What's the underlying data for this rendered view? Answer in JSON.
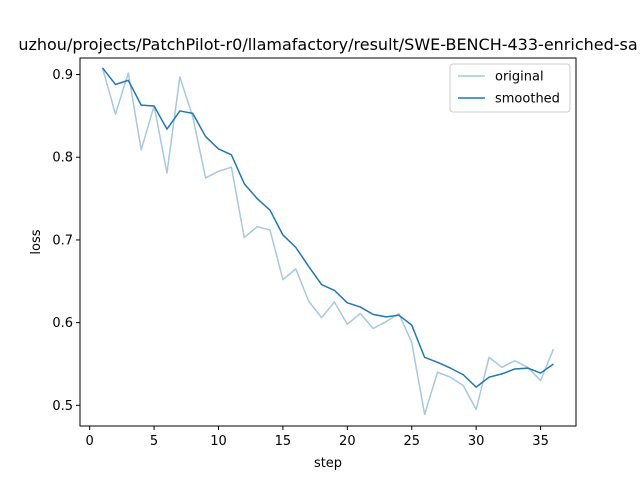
{
  "chart_data": {
    "type": "line",
    "title": "uzhou/projects/PatchPilot-r0/llamafactory/result/SWE-BENCH-433-enriched-sa",
    "xlabel": "step",
    "ylabel": "loss",
    "xlim": [
      -0.75,
      37.75
    ],
    "ylim": [
      0.475,
      0.92
    ],
    "xticks": [
      0,
      5,
      10,
      15,
      20,
      25,
      30,
      35
    ],
    "yticks": [
      0.5,
      0.6,
      0.7,
      0.8,
      0.9
    ],
    "ytick_labels": [
      "0.5",
      "0.6",
      "0.7",
      "0.8",
      "0.9"
    ],
    "grid": false,
    "legend_position": "upper-right",
    "x": [
      1,
      2,
      3,
      4,
      5,
      6,
      7,
      8,
      9,
      10,
      11,
      12,
      13,
      14,
      15,
      16,
      17,
      18,
      19,
      20,
      21,
      22,
      23,
      24,
      25,
      26,
      27,
      28,
      29,
      30,
      31,
      32,
      33,
      34,
      35,
      36
    ],
    "series": [
      {
        "name": "original",
        "color": "#a6c8e0",
        "values": [
          0.908,
          0.852,
          0.902,
          0.809,
          0.862,
          0.781,
          0.897,
          0.849,
          0.775,
          0.783,
          0.788,
          0.703,
          0.716,
          0.712,
          0.652,
          0.665,
          0.626,
          0.606,
          0.625,
          0.598,
          0.611,
          0.593,
          0.601,
          0.611,
          0.576,
          0.489,
          0.54,
          0.534,
          0.524,
          0.495,
          0.558,
          0.546,
          0.554,
          0.546,
          0.53,
          0.568
        ]
      },
      {
        "name": "smoothed",
        "color": "#1f77b4",
        "values": [
          0.908,
          0.888,
          0.893,
          0.863,
          0.862,
          0.834,
          0.856,
          0.853,
          0.825,
          0.81,
          0.803,
          0.768,
          0.75,
          0.736,
          0.706,
          0.691,
          0.668,
          0.646,
          0.639,
          0.624,
          0.619,
          0.61,
          0.607,
          0.609,
          0.597,
          0.558,
          0.552,
          0.545,
          0.537,
          0.522,
          0.534,
          0.538,
          0.544,
          0.545,
          0.539,
          0.55
        ]
      }
    ]
  }
}
